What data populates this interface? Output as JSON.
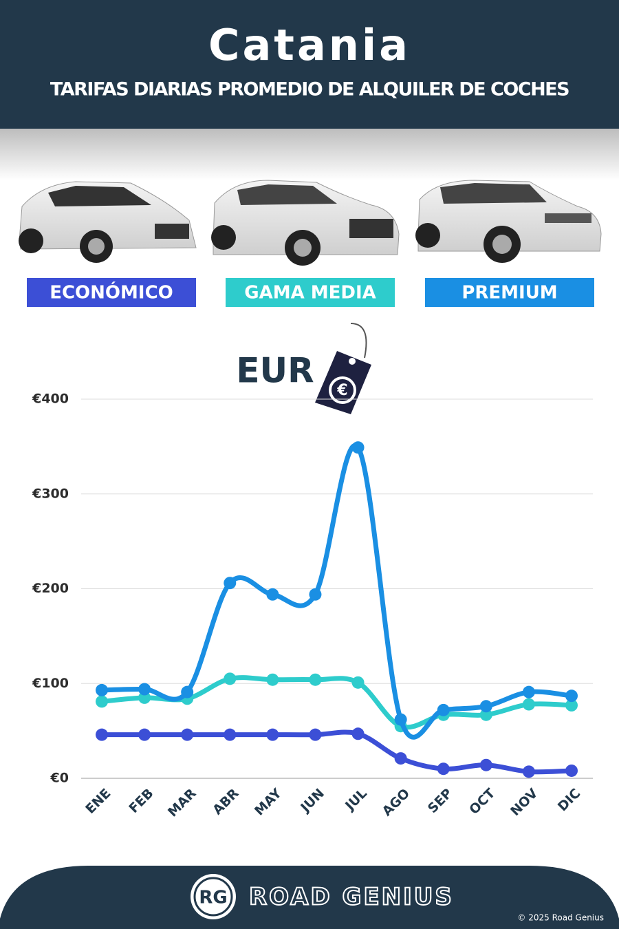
{
  "chart_data": {
    "type": "line",
    "title": "Catania",
    "subtitle": "TARIFAS DIARIAS PROMEDIO DE ALQUILER DE COCHES",
    "currency_label": "EUR",
    "categories": [
      "ENE",
      "FEB",
      "MAR",
      "ABR",
      "MAY",
      "JUN",
      "JUL",
      "AGO",
      "SEP",
      "OCT",
      "NOV",
      "DIC"
    ],
    "series": [
      {
        "name": "ECONÓMICO",
        "color": "#3c4fd6",
        "values": [
          46,
          46,
          46,
          46,
          46,
          46,
          47,
          21,
          10,
          14,
          7,
          8
        ]
      },
      {
        "name": "GAMA MEDIA",
        "color": "#2ecccc",
        "values": [
          81,
          85,
          84,
          105,
          104,
          104,
          101,
          55,
          67,
          67,
          78,
          77
        ]
      },
      {
        "name": "PREMIUM",
        "color": "#1a8fe3",
        "values": [
          93,
          94,
          91,
          206,
          194,
          194,
          349,
          62,
          72,
          76,
          91,
          87
        ]
      }
    ],
    "ylim": [
      0,
      400
    ],
    "yticks": [
      {
        "value": 0,
        "label": "€0"
      },
      {
        "value": 100,
        "label": "€100"
      },
      {
        "value": 200,
        "label": "€200"
      },
      {
        "value": 300,
        "label": "€300"
      },
      {
        "value": 400,
        "label": "€400"
      }
    ],
    "grid": true
  },
  "footer": {
    "logo": "RG",
    "brand": "ROAD GENIUS",
    "copyright": "© 2025 Road Genius"
  }
}
